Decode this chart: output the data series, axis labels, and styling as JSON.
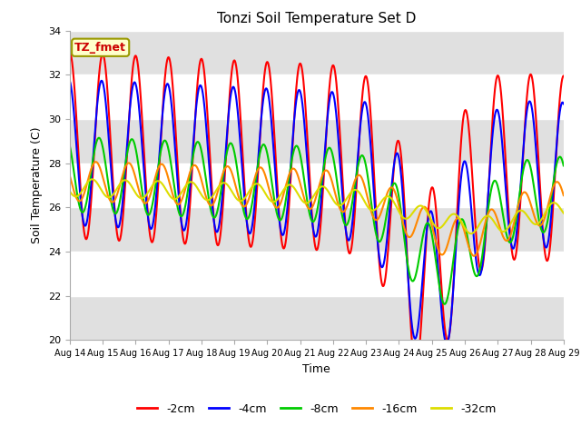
{
  "title": "Tonzi Soil Temperature Set D",
  "xlabel": "Time",
  "ylabel": "Soil Temperature (C)",
  "ylim": [
    20,
    34
  ],
  "annotation": "TZ_fmet",
  "series": [
    {
      "label": "-2cm",
      "color": "#ff0000",
      "lw": 1.5
    },
    {
      "label": "-4cm",
      "color": "#0000ff",
      "lw": 1.5
    },
    {
      "label": "-8cm",
      "color": "#00cc00",
      "lw": 1.5
    },
    {
      "label": "-16cm",
      "color": "#ff8800",
      "lw": 1.5
    },
    {
      "label": "-32cm",
      "color": "#dddd00",
      "lw": 1.5
    }
  ],
  "xtick_labels": [
    "Aug 14",
    "Aug 15",
    "Aug 16",
    "Aug 17",
    "Aug 18",
    "Aug 19",
    "Aug 20",
    "Aug 21",
    "Aug 22",
    "Aug 23",
    "Aug 24",
    "Aug 25",
    "Aug 26",
    "Aug 27",
    "Aug 28",
    "Aug 29"
  ],
  "yticks": [
    20,
    22,
    24,
    26,
    28,
    30,
    32,
    34
  ],
  "band_color": "#e0e0e0"
}
